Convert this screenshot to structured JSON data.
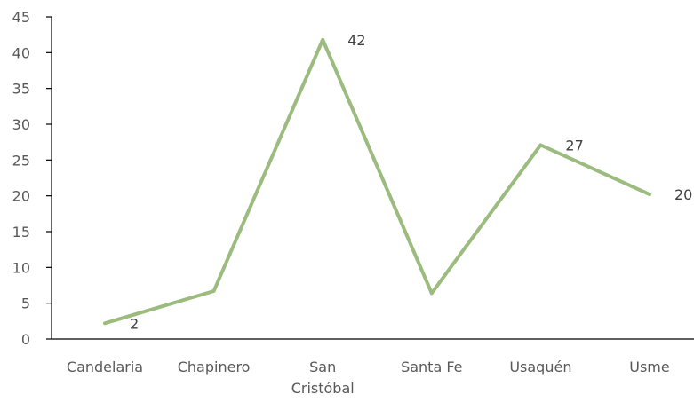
{
  "chart_data": {
    "type": "line",
    "categories": [
      "Candelaria",
      "Chapinero",
      "San Cristóbal",
      "Santa Fe",
      "Usaquén",
      "Usme"
    ],
    "category_lines": [
      [
        "Candelaria"
      ],
      [
        "Chapinero"
      ],
      [
        "San",
        "Cristóbal"
      ],
      [
        "Santa Fe"
      ],
      [
        "Usaquén"
      ],
      [
        "Usme"
      ]
    ],
    "series": [
      {
        "values": [
          2.2,
          6.7,
          41.8,
          6.4,
          27.1,
          20.2
        ],
        "color": "#9bbb7f"
      }
    ],
    "data_labels": [
      {
        "index": 0,
        "text": "2"
      },
      {
        "index": 2,
        "text": "42"
      },
      {
        "index": 4,
        "text": "27"
      },
      {
        "index": 5,
        "text": "20"
      }
    ],
    "ylim": [
      0,
      45
    ],
    "yticks": [
      0,
      5,
      10,
      15,
      20,
      25,
      30,
      35,
      40,
      45
    ],
    "xlabel": "",
    "ylabel": "",
    "title": "",
    "grid": false,
    "legend": "none"
  }
}
